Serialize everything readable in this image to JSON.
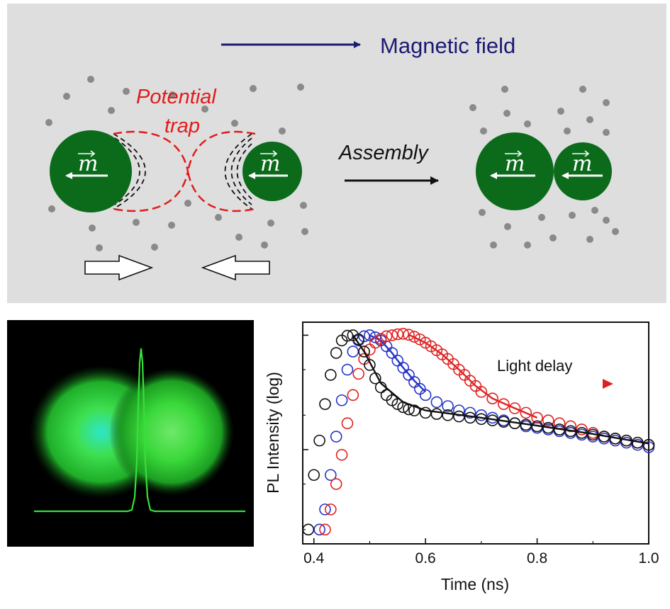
{
  "schematic": {
    "field_label": "Magnetic field",
    "trap_label_line1": "Potential",
    "trap_label_line2": "trap",
    "assembly_label": "Assembly",
    "moment_symbol": "m"
  },
  "colors": {
    "panel_bg": "#dedede",
    "particle": "#0b6b1b",
    "dots": "#8a8a8a",
    "field_arrow": "#1b1b72",
    "trap": "#e21b1b",
    "series_black": "#111111",
    "series_blue": "#2433c8",
    "series_red": "#e02020",
    "glow": "#36e03a"
  },
  "chart_data": {
    "type": "scatter",
    "xlabel": "Time (ns)",
    "ylabel": "PL Intensity (log)",
    "xlim": [
      0.38,
      1.0
    ],
    "x_ticks": [
      "0.4",
      "0.6",
      "0.8",
      "1.0"
    ],
    "y_scale": "log",
    "annotation": "Light delay",
    "grid": false,
    "series": [
      {
        "color": "#2433c8",
        "points": [
          [
            0.41,
            0.02
          ],
          [
            0.42,
            0.03
          ],
          [
            0.43,
            0.06
          ],
          [
            0.44,
            0.13
          ],
          [
            0.45,
            0.27
          ],
          [
            0.46,
            0.5
          ],
          [
            0.47,
            0.72
          ],
          [
            0.48,
            0.9
          ],
          [
            0.49,
            0.98
          ],
          [
            0.5,
            1.0
          ],
          [
            0.51,
            0.96
          ],
          [
            0.52,
            0.9
          ],
          [
            0.53,
            0.8
          ],
          [
            0.54,
            0.7
          ],
          [
            0.55,
            0.6
          ],
          [
            0.56,
            0.52
          ],
          [
            0.57,
            0.45
          ],
          [
            0.58,
            0.39
          ],
          [
            0.59,
            0.34
          ],
          [
            0.6,
            0.3
          ],
          [
            0.62,
            0.26
          ],
          [
            0.64,
            0.24
          ],
          [
            0.66,
            0.22
          ],
          [
            0.68,
            0.21
          ],
          [
            0.7,
            0.2
          ],
          [
            0.72,
            0.19
          ],
          [
            0.74,
            0.18
          ],
          [
            0.76,
            0.17
          ],
          [
            0.78,
            0.16
          ],
          [
            0.8,
            0.155
          ],
          [
            0.82,
            0.15
          ],
          [
            0.84,
            0.145
          ],
          [
            0.86,
            0.14
          ],
          [
            0.88,
            0.135
          ],
          [
            0.9,
            0.13
          ],
          [
            0.92,
            0.125
          ],
          [
            0.94,
            0.12
          ],
          [
            0.96,
            0.115
          ],
          [
            0.98,
            0.11
          ],
          [
            1.0,
            0.105
          ]
        ],
        "fit": [
          [
            0.5,
            1.0
          ],
          [
            0.52,
            0.9
          ],
          [
            0.54,
            0.7
          ],
          [
            0.56,
            0.52
          ],
          [
            0.58,
            0.4
          ],
          [
            0.6,
            0.32
          ]
        ]
      },
      {
        "color": "#e02020",
        "points": [
          [
            0.42,
            0.02
          ],
          [
            0.43,
            0.03
          ],
          [
            0.44,
            0.05
          ],
          [
            0.45,
            0.09
          ],
          [
            0.46,
            0.17
          ],
          [
            0.47,
            0.3
          ],
          [
            0.48,
            0.46
          ],
          [
            0.49,
            0.62
          ],
          [
            0.5,
            0.75
          ],
          [
            0.51,
            0.86
          ],
          [
            0.52,
            0.93
          ],
          [
            0.53,
            0.98
          ],
          [
            0.54,
            1.0
          ],
          [
            0.55,
            1.02
          ],
          [
            0.56,
            1.03
          ],
          [
            0.57,
            1.01
          ],
          [
            0.58,
            0.97
          ],
          [
            0.59,
            0.92
          ],
          [
            0.6,
            0.86
          ],
          [
            0.61,
            0.8
          ],
          [
            0.62,
            0.74
          ],
          [
            0.63,
            0.68
          ],
          [
            0.64,
            0.62
          ],
          [
            0.65,
            0.56
          ],
          [
            0.66,
            0.5
          ],
          [
            0.67,
            0.45
          ],
          [
            0.68,
            0.4
          ],
          [
            0.69,
            0.36
          ],
          [
            0.7,
            0.32
          ],
          [
            0.72,
            0.28
          ],
          [
            0.74,
            0.25
          ],
          [
            0.76,
            0.23
          ],
          [
            0.78,
            0.21
          ],
          [
            0.8,
            0.19
          ],
          [
            0.82,
            0.18
          ],
          [
            0.84,
            0.17
          ],
          [
            0.86,
            0.16
          ],
          [
            0.88,
            0.15
          ],
          [
            0.9,
            0.14
          ],
          [
            0.92,
            0.13
          ],
          [
            0.94,
            0.125
          ],
          [
            0.96,
            0.12
          ],
          [
            0.98,
            0.115
          ],
          [
            1.0,
            0.11
          ]
        ],
        "fit": [
          [
            0.57,
            1.01
          ],
          [
            0.6,
            0.86
          ],
          [
            0.63,
            0.68
          ],
          [
            0.66,
            0.5
          ],
          [
            0.69,
            0.36
          ],
          [
            0.72,
            0.28
          ],
          [
            0.76,
            0.23
          ],
          [
            0.8,
            0.19
          ]
        ]
      },
      {
        "color": "#111111",
        "points": [
          [
            0.39,
            0.02
          ],
          [
            0.4,
            0.06
          ],
          [
            0.41,
            0.12
          ],
          [
            0.42,
            0.25
          ],
          [
            0.43,
            0.45
          ],
          [
            0.44,
            0.7
          ],
          [
            0.45,
            0.9
          ],
          [
            0.46,
            0.99
          ],
          [
            0.47,
            1.0
          ],
          [
            0.48,
            0.92
          ],
          [
            0.49,
            0.72
          ],
          [
            0.5,
            0.55
          ],
          [
            0.51,
            0.42
          ],
          [
            0.52,
            0.35
          ],
          [
            0.53,
            0.3
          ],
          [
            0.54,
            0.27
          ],
          [
            0.55,
            0.25
          ],
          [
            0.56,
            0.235
          ],
          [
            0.57,
            0.225
          ],
          [
            0.58,
            0.22
          ],
          [
            0.6,
            0.21
          ],
          [
            0.62,
            0.205
          ],
          [
            0.64,
            0.2
          ],
          [
            0.66,
            0.195
          ],
          [
            0.68,
            0.19
          ],
          [
            0.7,
            0.185
          ],
          [
            0.72,
            0.18
          ],
          [
            0.74,
            0.175
          ],
          [
            0.76,
            0.17
          ],
          [
            0.78,
            0.165
          ],
          [
            0.8,
            0.16
          ],
          [
            0.82,
            0.155
          ],
          [
            0.84,
            0.15
          ],
          [
            0.86,
            0.145
          ],
          [
            0.88,
            0.14
          ],
          [
            0.9,
            0.135
          ],
          [
            0.92,
            0.13
          ],
          [
            0.94,
            0.125
          ],
          [
            0.96,
            0.12
          ],
          [
            0.98,
            0.115
          ],
          [
            1.0,
            0.11
          ]
        ],
        "fit": [
          [
            0.47,
            1.0
          ],
          [
            0.49,
            0.72
          ],
          [
            0.52,
            0.38
          ],
          [
            0.56,
            0.26
          ],
          [
            0.6,
            0.22
          ],
          [
            0.7,
            0.19
          ],
          [
            0.8,
            0.162
          ],
          [
            0.9,
            0.137
          ],
          [
            1.0,
            0.113
          ]
        ]
      }
    ]
  }
}
